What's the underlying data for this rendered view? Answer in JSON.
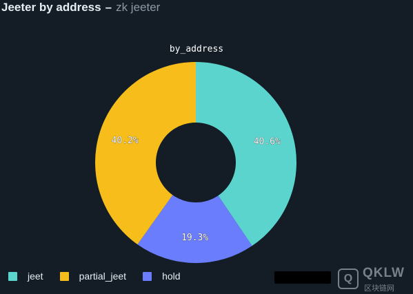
{
  "header": {
    "title": "Jeeter by address",
    "separator": "–",
    "subtitle": "zk jeeter"
  },
  "colors": {
    "background": "#141d26",
    "jeet": "#5ad4cc",
    "partial_jeet": "#f7be1b",
    "hold": "#6a7dfd"
  },
  "chart_data": {
    "type": "pie",
    "title": "by_address",
    "donut": true,
    "categories": [
      "jeet",
      "hold",
      "partial_jeet"
    ],
    "values": [
      40.6,
      19.3,
      40.2
    ],
    "labels": [
      "40.6%",
      "19.3%",
      "40.2%"
    ],
    "legend": {
      "placement": "bottom-left",
      "entries": [
        "jeet",
        "partial_jeet",
        "hold"
      ]
    }
  },
  "watermark": {
    "text": "QKLW",
    "sub": "区块链网"
  }
}
